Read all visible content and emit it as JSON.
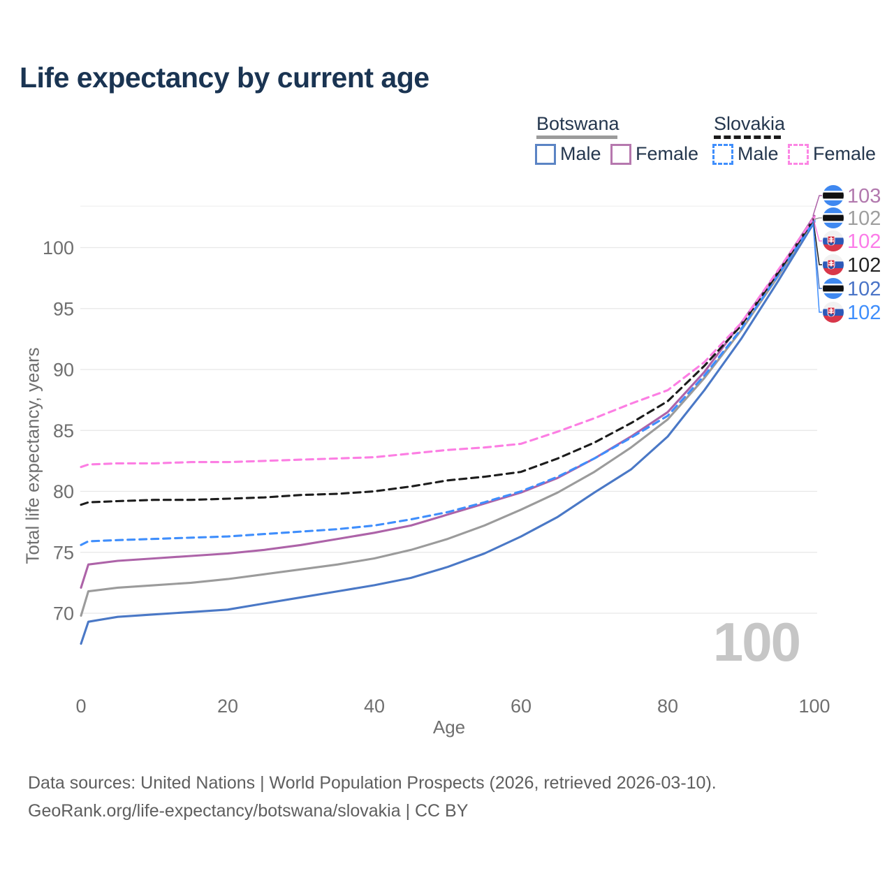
{
  "page": {
    "title": "Life expectancy by current age"
  },
  "legend": {
    "groups": [
      {
        "country": "Botswana",
        "line_style": "solid",
        "line_color": "#9b9b9b",
        "items": [
          {
            "label": "Male",
            "color": "#4a78c6",
            "style": "solid"
          },
          {
            "label": "Female",
            "color": "#b678ae",
            "style": "solid"
          }
        ]
      },
      {
        "country": "Slovakia",
        "line_style": "dashed",
        "line_color": "#1c1c1c",
        "items": [
          {
            "label": "Male",
            "color": "#3f8efc",
            "style": "dashed"
          },
          {
            "label": "Female",
            "color": "#fc86e4",
            "style": "dashed"
          }
        ]
      }
    ]
  },
  "chart_data": {
    "type": "line",
    "title": "Life expectancy by current age",
    "xlabel": "Age",
    "ylabel": "Total life expectancy, years",
    "x": [
      0,
      1,
      5,
      10,
      15,
      20,
      25,
      30,
      35,
      40,
      45,
      50,
      55,
      60,
      65,
      70,
      75,
      80,
      85,
      90,
      95,
      100
    ],
    "xticks": [
      0,
      20,
      40,
      60,
      80,
      100
    ],
    "yticks": [
      70,
      75,
      80,
      85,
      90,
      95,
      100
    ],
    "xlim": [
      0,
      100
    ],
    "ylim": [
      66.5,
      103.4
    ],
    "grid": "horizontal",
    "legend_position": "top-right",
    "series": [
      {
        "name": "Botswana Male",
        "country": "Botswana",
        "sex": "male",
        "style": "solid",
        "color": "#4a78c6",
        "values": [
          67.5,
          69.3,
          69.7,
          69.9,
          70.1,
          70.3,
          70.8,
          71.3,
          71.8,
          72.3,
          72.9,
          73.8,
          74.9,
          76.3,
          77.9,
          79.9,
          81.8,
          84.5,
          88.3,
          92.5,
          97.2,
          102.1
        ]
      },
      {
        "name": "Botswana Total",
        "country": "Botswana",
        "sex": "both",
        "style": "solid",
        "color": "#9b9b9b",
        "values": [
          69.8,
          71.8,
          72.1,
          72.3,
          72.5,
          72.8,
          73.2,
          73.6,
          74.0,
          74.5,
          75.2,
          76.1,
          77.2,
          78.5,
          79.9,
          81.6,
          83.6,
          85.9,
          89.3,
          93.2,
          97.6,
          102.3
        ]
      },
      {
        "name": "Botswana Female",
        "country": "Botswana",
        "sex": "female",
        "style": "solid",
        "color": "#ad63a8",
        "values": [
          72.1,
          74.0,
          74.3,
          74.5,
          74.7,
          74.9,
          75.2,
          75.6,
          76.1,
          76.6,
          77.2,
          78.1,
          79.0,
          79.9,
          81.1,
          82.7,
          84.5,
          86.5,
          89.8,
          93.8,
          98.0,
          102.6
        ]
      },
      {
        "name": "Slovakia Male",
        "country": "Slovakia",
        "sex": "male",
        "style": "dashed",
        "color": "#3f8efc",
        "values": [
          75.6,
          75.9,
          76.0,
          76.1,
          76.2,
          76.3,
          76.5,
          76.7,
          76.9,
          77.2,
          77.7,
          78.3,
          79.1,
          80.0,
          81.2,
          82.7,
          84.4,
          86.2,
          89.5,
          93.3,
          97.7,
          102.2
        ]
      },
      {
        "name": "Slovakia Total",
        "country": "Slovakia",
        "sex": "both",
        "style": "dashed",
        "color": "#1c1c1c",
        "values": [
          78.9,
          79.1,
          79.2,
          79.3,
          79.3,
          79.4,
          79.5,
          79.7,
          79.8,
          80.0,
          80.4,
          80.9,
          81.2,
          81.6,
          82.7,
          84.0,
          85.6,
          87.4,
          90.3,
          93.6,
          97.9,
          102.4
        ]
      },
      {
        "name": "Slovakia Female",
        "country": "Slovakia",
        "sex": "female",
        "style": "dashed",
        "color": "#fc7ee3",
        "values": [
          82.0,
          82.2,
          82.3,
          82.3,
          82.4,
          82.4,
          82.5,
          82.6,
          82.7,
          82.8,
          83.1,
          83.4,
          83.6,
          83.9,
          84.9,
          86.0,
          87.2,
          88.3,
          90.6,
          93.8,
          98.1,
          102.5
        ]
      }
    ],
    "end_labels": [
      {
        "text": "103",
        "series": "Botswana Female",
        "flag": "botswana",
        "color": "#b279ae"
      },
      {
        "text": "102",
        "series": "Botswana Total",
        "flag": "botswana",
        "color": "#9e9e9e"
      },
      {
        "text": "102",
        "series": "Slovakia Female",
        "flag": "slovakia",
        "color": "#fb7ce8"
      },
      {
        "text": "102",
        "series": "Slovakia Total",
        "flag": "slovakia",
        "color": "#222222"
      },
      {
        "text": "102",
        "series": "Botswana Male",
        "flag": "botswana",
        "color": "#4a74c7"
      },
      {
        "text": "102",
        "series": "Slovakia Male",
        "flag": "slovakia",
        "color": "#3f8efc"
      }
    ],
    "age_marker": "100"
  },
  "footer": {
    "line1": "Data sources: United Nations | World Population Prospects (2026, retrieved 2026-03-10).",
    "line2": "GeoRank.org/life-expectancy/botswana/slovakia | CC BY"
  }
}
